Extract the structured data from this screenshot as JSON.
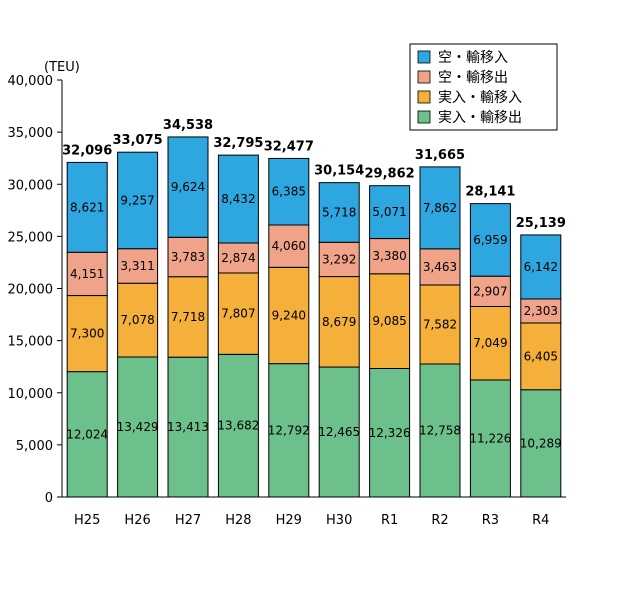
{
  "chart_data": {
    "type": "bar",
    "stacked": true,
    "unit_label": "(TEU)",
    "categories": [
      "H25",
      "H26",
      "H27",
      "H28",
      "H29",
      "H30",
      "R1",
      "R2",
      "R3",
      "R4"
    ],
    "series": [
      {
        "name": "実入・輸移出",
        "color": "#6cc08b",
        "values": [
          12024,
          13429,
          13413,
          13682,
          12792,
          12465,
          12326,
          12758,
          11226,
          10289
        ]
      },
      {
        "name": "実入・輸移入",
        "color": "#f4b03a",
        "values": [
          7300,
          7078,
          7718,
          7807,
          9240,
          8679,
          9085,
          7582,
          7049,
          6405
        ]
      },
      {
        "name": "空・輸移出",
        "color": "#f0a389",
        "values": [
          4151,
          3311,
          3783,
          2874,
          4060,
          3292,
          3380,
          3463,
          2907,
          2303
        ]
      },
      {
        "name": "空・輸移入",
        "color": "#2ea7e0",
        "values": [
          8621,
          9257,
          9624,
          8432,
          6385,
          5718,
          5071,
          7862,
          6959,
          6142
        ]
      }
    ],
    "totals": [
      32096,
      33075,
      34538,
      32795,
      32477,
      30154,
      29862,
      31665,
      28141,
      25139
    ],
    "ylim": [
      0,
      40000
    ],
    "yticks": [
      0,
      5000,
      10000,
      15000,
      20000,
      25000,
      30000,
      35000,
      40000
    ],
    "legend_position": "top-right",
    "grid": false
  }
}
